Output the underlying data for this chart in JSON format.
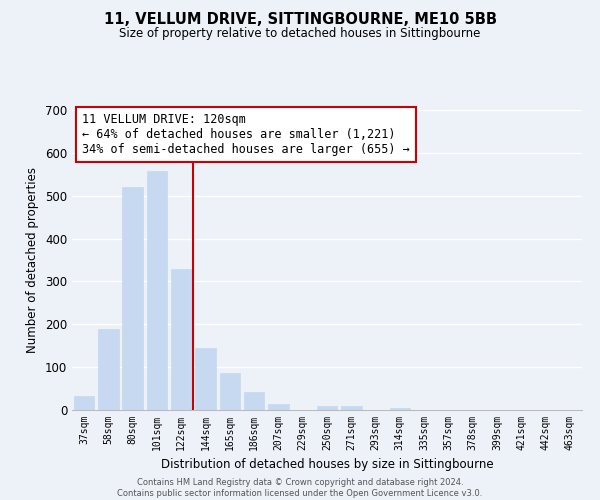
{
  "title": "11, VELLUM DRIVE, SITTINGBOURNE, ME10 5BB",
  "subtitle": "Size of property relative to detached houses in Sittingbourne",
  "xlabel": "Distribution of detached houses by size in Sittingbourne",
  "ylabel": "Number of detached properties",
  "bar_labels": [
    "37sqm",
    "58sqm",
    "80sqm",
    "101sqm",
    "122sqm",
    "144sqm",
    "165sqm",
    "186sqm",
    "207sqm",
    "229sqm",
    "250sqm",
    "271sqm",
    "293sqm",
    "314sqm",
    "335sqm",
    "357sqm",
    "378sqm",
    "399sqm",
    "421sqm",
    "442sqm",
    "463sqm"
  ],
  "bar_values": [
    33,
    190,
    520,
    558,
    330,
    145,
    87,
    42,
    15,
    0,
    10,
    10,
    0,
    5,
    0,
    0,
    0,
    0,
    0,
    0,
    0
  ],
  "bar_color": "#c6d9f1",
  "vline_color": "#cc0000",
  "vline_index": 4,
  "annotation_title": "11 VELLUM DRIVE: 120sqm",
  "annotation_line1": "← 64% of detached houses are smaller (1,221)",
  "annotation_line2": "34% of semi-detached houses are larger (655) →",
  "annotation_box_color": "#ffffff",
  "annotation_box_edge": "#cc0000",
  "ylim": [
    0,
    700
  ],
  "yticks": [
    0,
    100,
    200,
    300,
    400,
    500,
    600,
    700
  ],
  "footer_line1": "Contains HM Land Registry data © Crown copyright and database right 2024.",
  "footer_line2": "Contains public sector information licensed under the Open Government Licence v3.0.",
  "bg_color": "#edf2f9",
  "plot_bg_color": "#edf2f9",
  "grid_color": "#ffffff"
}
